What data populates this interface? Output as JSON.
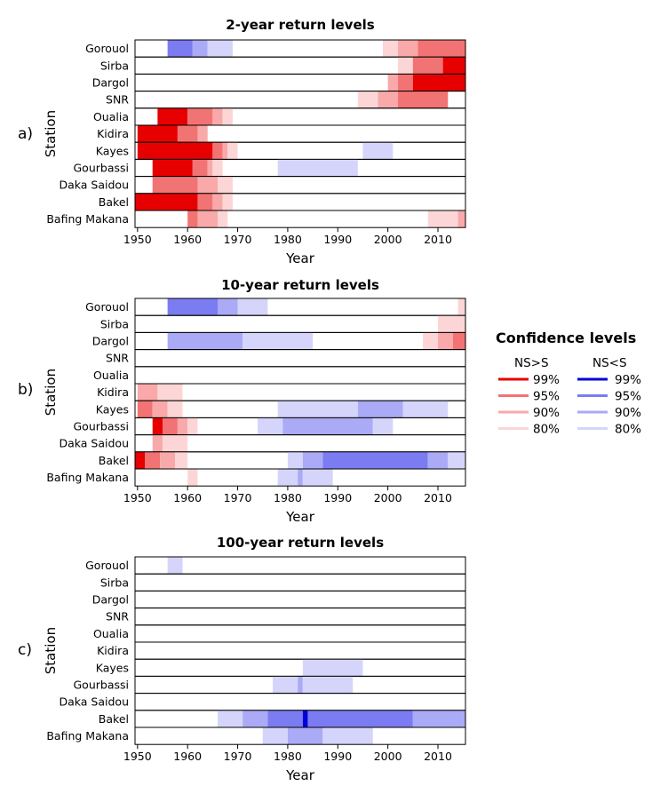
{
  "stations": [
    "Gorouol",
    "Sirba",
    "Dargol",
    "SNR",
    "Oualia",
    "Kidira",
    "Kayes",
    "Gourbassi",
    "Daka Saidou",
    "Bakel",
    "Bafing Makana"
  ],
  "axis": {
    "xlabel": "Year",
    "ylabel": "Station",
    "xlim": [
      1949.5,
      2015.5
    ],
    "xticks": [
      1950,
      1960,
      1970,
      1980,
      1990,
      2000,
      2010
    ]
  },
  "colors": {
    "NS>S": {
      "99%": "#e60000",
      "95%": "#f27373",
      "90%": "#f9a9a9",
      "80%": "#fcd6d6"
    },
    "NS<S": {
      "99%": "#0000d9",
      "95%": "#7b7bf2",
      "90%": "#aaaaf6",
      "80%": "#d5d5fb"
    }
  },
  "legend": {
    "title": "Confidence levels",
    "columns": [
      "NS>S",
      "NS<S"
    ],
    "levels": [
      "99%",
      "95%",
      "90%",
      "80%"
    ]
  },
  "chart_data": [
    {
      "type": "heatmap",
      "panel_label": "a)",
      "title": "2-year return levels",
      "xlabel": "Year",
      "ylabel": "Station",
      "rows": [
        {
          "station": "Gorouol",
          "segments": [
            [
              1956,
              1961,
              "NS<S",
              "95%"
            ],
            [
              1961,
              1964,
              "NS<S",
              "90%"
            ],
            [
              1964,
              1969,
              "NS<S",
              "80%"
            ],
            [
              1999,
              2002,
              "NS>S",
              "80%"
            ],
            [
              2002,
              2006,
              "NS>S",
              "90%"
            ],
            [
              2006,
              2015.5,
              "NS>S",
              "95%"
            ]
          ]
        },
        {
          "station": "Sirba",
          "segments": [
            [
              2002,
              2005,
              "NS>S",
              "80%"
            ],
            [
              2005,
              2011,
              "NS>S",
              "95%"
            ],
            [
              2011,
              2015.5,
              "NS>S",
              "99%"
            ]
          ]
        },
        {
          "station": "Dargol",
          "segments": [
            [
              2000,
              2002,
              "NS>S",
              "90%"
            ],
            [
              2002,
              2005,
              "NS>S",
              "95%"
            ],
            [
              2005,
              2015.5,
              "NS>S",
              "99%"
            ]
          ]
        },
        {
          "station": "SNR",
          "segments": [
            [
              1994,
              1998,
              "NS>S",
              "80%"
            ],
            [
              1998,
              2002,
              "NS>S",
              "90%"
            ],
            [
              2002,
              2012,
              "NS>S",
              "95%"
            ]
          ]
        },
        {
          "station": "Oualia",
          "segments": [
            [
              1954,
              1960,
              "NS>S",
              "99%"
            ],
            [
              1960,
              1965,
              "NS>S",
              "95%"
            ],
            [
              1965,
              1967,
              "NS>S",
              "90%"
            ],
            [
              1967,
              1969,
              "NS>S",
              "80%"
            ]
          ]
        },
        {
          "station": "Kidira",
          "segments": [
            [
              1950,
              1958,
              "NS>S",
              "99%"
            ],
            [
              1958,
              1962,
              "NS>S",
              "95%"
            ],
            [
              1962,
              1964,
              "NS>S",
              "90%"
            ]
          ]
        },
        {
          "station": "Kayes",
          "segments": [
            [
              1950,
              1965,
              "NS>S",
              "99%"
            ],
            [
              1965,
              1967,
              "NS>S",
              "95%"
            ],
            [
              1967,
              1968,
              "NS>S",
              "90%"
            ],
            [
              1968,
              1970,
              "NS>S",
              "80%"
            ],
            [
              1995,
              2001,
              "NS<S",
              "80%"
            ]
          ]
        },
        {
          "station": "Gourbassi",
          "segments": [
            [
              1953,
              1961,
              "NS>S",
              "99%"
            ],
            [
              1961,
              1964,
              "NS>S",
              "95%"
            ],
            [
              1964,
              1965,
              "NS>S",
              "90%"
            ],
            [
              1965,
              1967,
              "NS>S",
              "80%"
            ],
            [
              1978,
              1994,
              "NS<S",
              "80%"
            ]
          ]
        },
        {
          "station": "Daka Saidou",
          "segments": [
            [
              1953,
              1962,
              "NS>S",
              "95%"
            ],
            [
              1962,
              1966,
              "NS>S",
              "90%"
            ],
            [
              1966,
              1969,
              "NS>S",
              "80%"
            ]
          ]
        },
        {
          "station": "Bakel",
          "segments": [
            [
              1949.5,
              1962,
              "NS>S",
              "99%"
            ],
            [
              1962,
              1965,
              "NS>S",
              "95%"
            ],
            [
              1965,
              1967,
              "NS>S",
              "90%"
            ],
            [
              1967,
              1969,
              "NS>S",
              "80%"
            ]
          ]
        },
        {
          "station": "Bafing Makana",
          "segments": [
            [
              1960,
              1962,
              "NS>S",
              "95%"
            ],
            [
              1962,
              1966,
              "NS>S",
              "90%"
            ],
            [
              1966,
              1968,
              "NS>S",
              "80%"
            ],
            [
              2008,
              2014,
              "NS>S",
              "80%"
            ],
            [
              2014,
              2015.5,
              "NS>S",
              "90%"
            ]
          ]
        }
      ]
    },
    {
      "type": "heatmap",
      "panel_label": "b)",
      "title": "10-year return levels",
      "xlabel": "Year",
      "ylabel": "Station",
      "rows": [
        {
          "station": "Gorouol",
          "segments": [
            [
              1956,
              1966,
              "NS<S",
              "95%"
            ],
            [
              1966,
              1970,
              "NS<S",
              "90%"
            ],
            [
              1970,
              1976,
              "NS<S",
              "80%"
            ],
            [
              2014,
              2015.5,
              "NS>S",
              "80%"
            ]
          ]
        },
        {
          "station": "Sirba",
          "segments": [
            [
              2010,
              2015.5,
              "NS>S",
              "80%"
            ]
          ]
        },
        {
          "station": "Dargol",
          "segments": [
            [
              1956,
              1971,
              "NS<S",
              "90%"
            ],
            [
              1971,
              1985,
              "NS<S",
              "80%"
            ],
            [
              2007,
              2010,
              "NS>S",
              "80%"
            ],
            [
              2010,
              2013,
              "NS>S",
              "90%"
            ],
            [
              2013,
              2015.5,
              "NS>S",
              "95%"
            ]
          ]
        },
        {
          "station": "SNR",
          "segments": []
        },
        {
          "station": "Oualia",
          "segments": []
        },
        {
          "station": "Kidira",
          "segments": [
            [
              1950,
              1954,
              "NS>S",
              "90%"
            ],
            [
              1954,
              1959,
              "NS>S",
              "80%"
            ]
          ]
        },
        {
          "station": "Kayes",
          "segments": [
            [
              1950,
              1953,
              "NS>S",
              "95%"
            ],
            [
              1953,
              1956,
              "NS>S",
              "90%"
            ],
            [
              1956,
              1959,
              "NS>S",
              "80%"
            ],
            [
              1978,
              1994,
              "NS<S",
              "80%"
            ],
            [
              1994,
              2003,
              "NS<S",
              "90%"
            ],
            [
              2003,
              2012,
              "NS<S",
              "80%"
            ]
          ]
        },
        {
          "station": "Gourbassi",
          "segments": [
            [
              1953,
              1955,
              "NS>S",
              "99%"
            ],
            [
              1955,
              1958,
              "NS>S",
              "95%"
            ],
            [
              1958,
              1960,
              "NS>S",
              "90%"
            ],
            [
              1960,
              1962,
              "NS>S",
              "80%"
            ],
            [
              1974,
              1979,
              "NS<S",
              "80%"
            ],
            [
              1979,
              1997,
              "NS<S",
              "90%"
            ],
            [
              1997,
              2001,
              "NS<S",
              "80%"
            ]
          ]
        },
        {
          "station": "Daka Saidou",
          "segments": [
            [
              1953,
              1955,
              "NS>S",
              "90%"
            ],
            [
              1955,
              1960,
              "NS>S",
              "80%"
            ]
          ]
        },
        {
          "station": "Bakel",
          "segments": [
            [
              1949.5,
              1951.5,
              "NS>S",
              "99%"
            ],
            [
              1951.5,
              1954.5,
              "NS>S",
              "95%"
            ],
            [
              1954.5,
              1957.5,
              "NS>S",
              "90%"
            ],
            [
              1957.5,
              1960,
              "NS>S",
              "80%"
            ],
            [
              1980,
              1983,
              "NS<S",
              "80%"
            ],
            [
              1983,
              1987,
              "NS<S",
              "90%"
            ],
            [
              1987,
              2008,
              "NS<S",
              "95%"
            ],
            [
              2008,
              2012,
              "NS<S",
              "90%"
            ],
            [
              2012,
              2015.5,
              "NS<S",
              "80%"
            ]
          ]
        },
        {
          "station": "Bafing Makana",
          "segments": [
            [
              1960,
              1962,
              "NS>S",
              "80%"
            ],
            [
              1978,
              1982,
              "NS<S",
              "80%"
            ],
            [
              1982,
              1983,
              "NS<S",
              "90%"
            ],
            [
              1983,
              1989,
              "NS<S",
              "80%"
            ]
          ]
        }
      ]
    },
    {
      "type": "heatmap",
      "panel_label": "c)",
      "title": "100-year return levels",
      "xlabel": "Year",
      "ylabel": "Station",
      "rows": [
        {
          "station": "Gorouol",
          "segments": [
            [
              1956,
              1959,
              "NS<S",
              "80%"
            ]
          ]
        },
        {
          "station": "Sirba",
          "segments": []
        },
        {
          "station": "Dargol",
          "segments": []
        },
        {
          "station": "SNR",
          "segments": []
        },
        {
          "station": "Oualia",
          "segments": []
        },
        {
          "station": "Kidira",
          "segments": []
        },
        {
          "station": "Kayes",
          "segments": [
            [
              1983,
              1995,
              "NS<S",
              "80%"
            ]
          ]
        },
        {
          "station": "Gourbassi",
          "segments": [
            [
              1977,
              1982,
              "NS<S",
              "80%"
            ],
            [
              1982,
              1983,
              "NS<S",
              "90%"
            ],
            [
              1983,
              1993,
              "NS<S",
              "80%"
            ]
          ]
        },
        {
          "station": "Daka Saidou",
          "segments": []
        },
        {
          "station": "Bakel",
          "segments": [
            [
              1966,
              1971,
              "NS<S",
              "80%"
            ],
            [
              1971,
              1976,
              "NS<S",
              "90%"
            ],
            [
              1976,
              1983,
              "NS<S",
              "95%"
            ],
            [
              1983,
              1984,
              "NS<S",
              "99%"
            ],
            [
              1984,
              2005,
              "NS<S",
              "95%"
            ],
            [
              2005,
              2015.5,
              "NS<S",
              "90%"
            ]
          ]
        },
        {
          "station": "Bafing Makana",
          "segments": [
            [
              1975,
              1980,
              "NS<S",
              "80%"
            ],
            [
              1980,
              1987,
              "NS<S",
              "90%"
            ],
            [
              1987,
              1997,
              "NS<S",
              "80%"
            ]
          ]
        }
      ]
    }
  ]
}
